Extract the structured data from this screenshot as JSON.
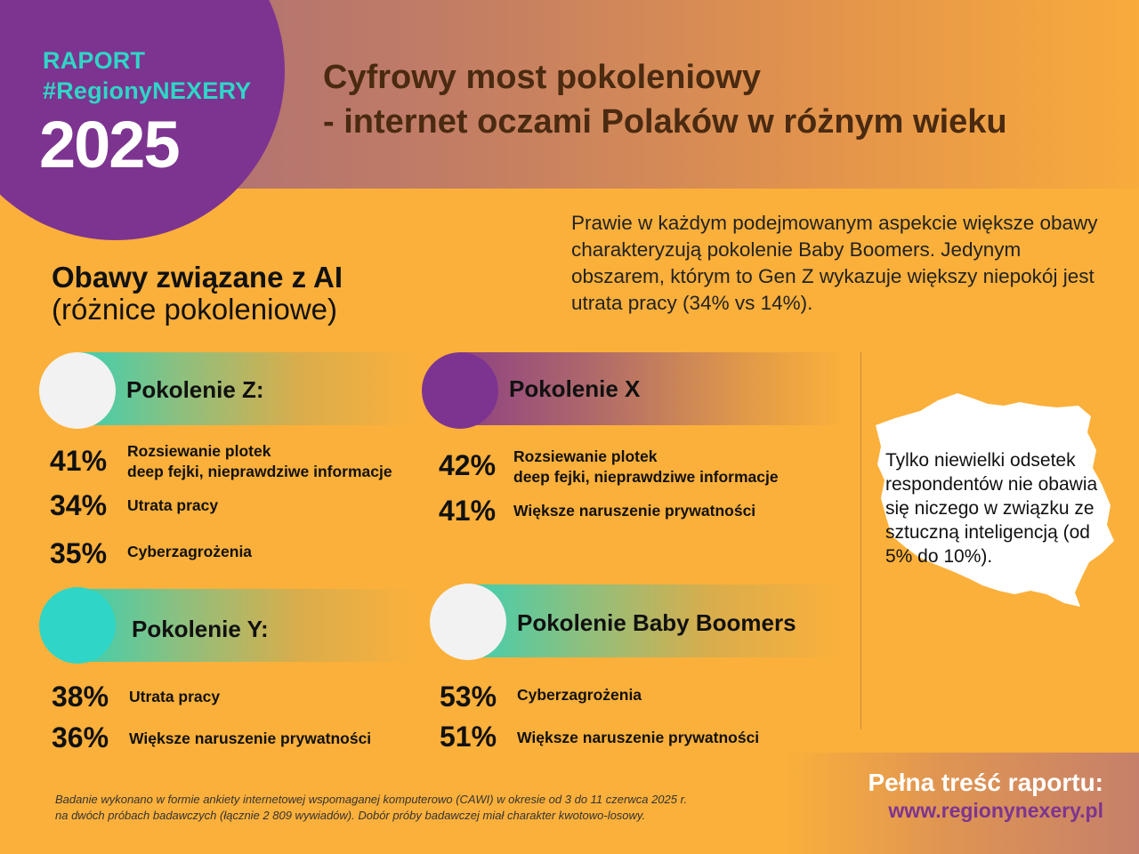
{
  "badge": {
    "line1": "RAPORT",
    "line2": "#RegionyNEXERY",
    "year": "2025"
  },
  "title": {
    "line1": "Cyfrowy most pokoleniowy",
    "line2": "- internet oczami Polaków w różnym wieku"
  },
  "intro": "Prawie w każdym podejmowanym aspekcie większe obawy charakteryzują pokolenie Baby Boomers. Jedynym obszarem, którym to Gen Z wykazuje większy niepokój jest utrata pracy (34% vs 14%).",
  "section": {
    "title": "Obawy związane z AI",
    "subtitle": "(różnice pokoleniowe)"
  },
  "gen_z": {
    "label": "Pokolenie Z:",
    "items": [
      {
        "pct": "41%",
        "text1": "Rozsiewanie plotek",
        "text2": "deep fejki, nieprawdziwe informacje"
      },
      {
        "pct": "34%",
        "text1": "Utrata pracy"
      },
      {
        "pct": "35%",
        "text1": "Cyberzagrożenia"
      }
    ]
  },
  "gen_x": {
    "label": "Pokolenie X",
    "items": [
      {
        "pct": "42%",
        "text1": "Rozsiewanie plotek",
        "text2": "deep fejki, nieprawdziwe informacje"
      },
      {
        "pct": "41%",
        "text1": "Większe naruszenie prywatności"
      }
    ]
  },
  "gen_y": {
    "label": "Pokolenie Y:",
    "items": [
      {
        "pct": "38%",
        "text1": "Utrata pracy"
      },
      {
        "pct": "36%",
        "text1": "Większe naruszenie prywatności"
      }
    ]
  },
  "gen_bb": {
    "label": "Pokolenie Baby Boomers",
    "items": [
      {
        "pct": "53%",
        "text1": "Cyberzagrożenia"
      },
      {
        "pct": "51%",
        "text1": "Większe naruszenie prywatności"
      }
    ]
  },
  "map_text": "Tylko niewielki odsetek respondentów nie obawia się niczego w związku ze sztuczną inteligencją (od 5% do 10%).",
  "footnote": {
    "line1": "Badanie wykonano w formie ankiety internetowej wspomaganej komputerowo (CAWI) w okresie od 3 do 11 czerwca 2025 r.",
    "line2": "na dwóch próbach badawczych (łącznie 2 809 wywiadów). Dobór próby badawczej miał charakter kwotowo-losowy."
  },
  "cta": {
    "title": "Pełna treść raportu:",
    "url": "www.regionynexery.pl"
  },
  "colors": {
    "background": "#fbb03b",
    "purple": "#7d3490",
    "teal": "#2fd6c7",
    "title_brown": "#4a2a10"
  }
}
